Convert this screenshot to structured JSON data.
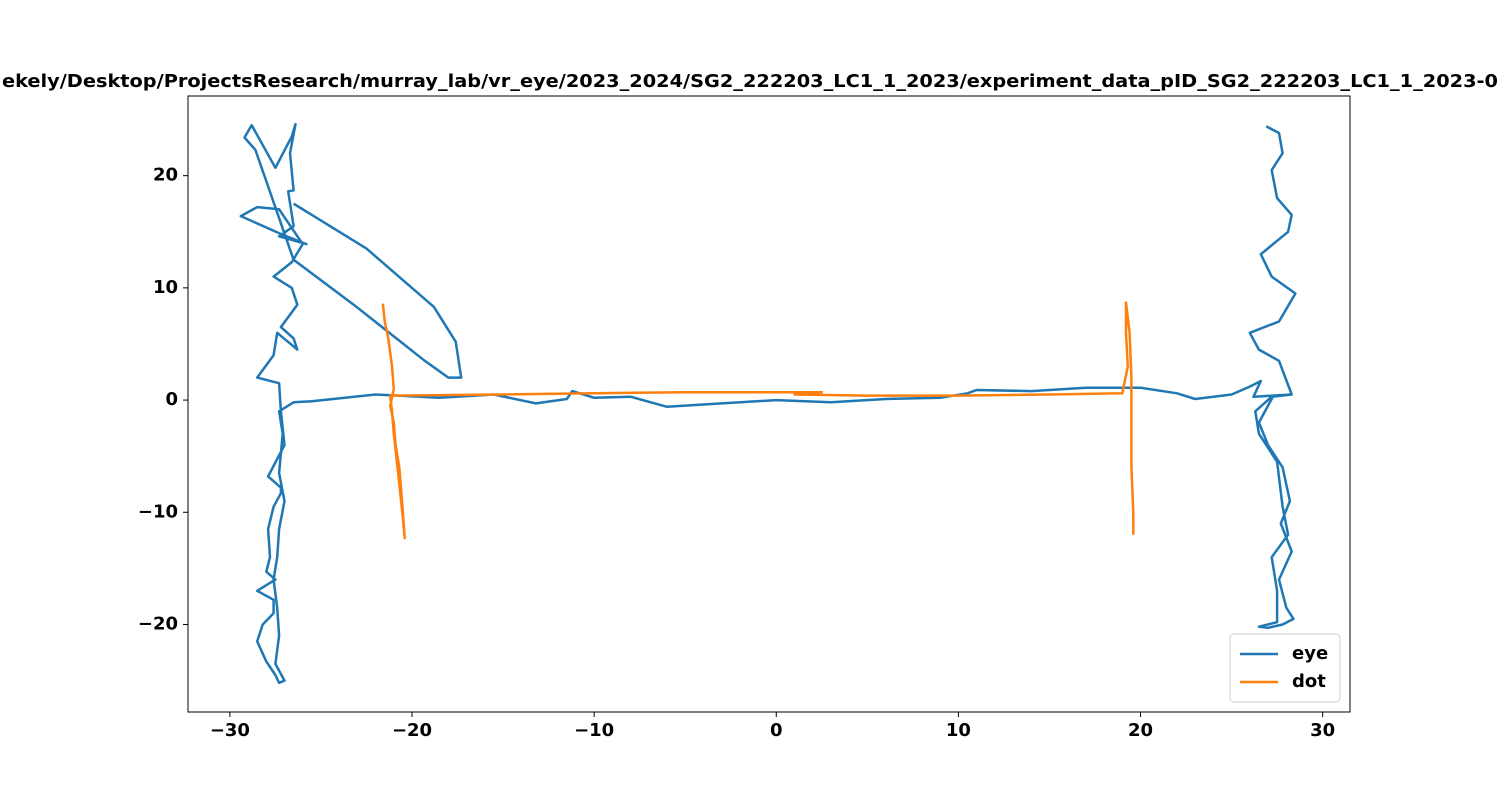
{
  "chart_data": {
    "type": "line",
    "title": "ekely/Desktop/ProjectsResearch/murray_lab/vr_eye/2023_2024/SG2_222203_LC1_1_2023/experiment_data_pID_SG2_222203_LC1_1_2023-0",
    "xlim": [
      -32.3,
      31.5
    ],
    "ylim": [
      -27.8,
      27.1
    ],
    "xticks": [
      {
        "value": -30,
        "label": "−30"
      },
      {
        "value": -20,
        "label": "−20"
      },
      {
        "value": -10,
        "label": "−10"
      },
      0,
      10,
      20,
      30
    ],
    "yticks": [
      {
        "value": -20,
        "label": "−20"
      },
      {
        "value": -10,
        "label": "−10"
      },
      0,
      10,
      20
    ],
    "legend": "lower right",
    "grid": false,
    "series": [
      {
        "name": "eye",
        "color": "#1f77b4",
        "x": [
          -26.5,
          -22.5,
          -18.8,
          -17.6,
          -17.3,
          -18,
          -19.3,
          -23.2,
          -26.5,
          -28.6,
          -29.2,
          -28.8,
          -27.5,
          -26.6,
          -26.4,
          -26.7,
          -26.5,
          -26.8,
          -26.5,
          -27.3,
          -25.8,
          -27.2,
          -29.4,
          -28.5,
          -27.3,
          -26,
          -26.6,
          -27.6,
          -26.6,
          -26.3,
          -27.2,
          -26.5,
          -26.3,
          -27.4,
          -27.6,
          -28.5,
          -27.3,
          -27.2,
          -27,
          -27.9,
          -27.2,
          -27.2,
          -27.6,
          -27.9,
          -27.8,
          -28,
          -27.5,
          -28.5,
          -27.6,
          -27.6,
          -28.2,
          -28.5,
          -28,
          -27.5,
          -27.3,
          -27,
          -27.5,
          -27.3,
          -27.4,
          -27.6,
          -27.4,
          -27.3,
          -27,
          -27.3,
          -27.1,
          -27.3,
          -26.5,
          -25.5,
          -22,
          -18.5,
          -15.5,
          -13.2,
          -11.5,
          -11.2,
          -10,
          -8,
          -6,
          -3,
          0,
          3,
          6,
          9,
          10.5,
          11,
          14,
          17,
          20,
          22,
          23,
          25,
          26,
          26.6,
          26.2,
          28.3,
          27.3,
          26.5,
          27,
          27.8,
          28.2,
          27.7,
          28.3,
          27.6,
          28,
          28.4,
          27.8,
          27,
          26.5,
          27.5,
          27.5,
          27.2,
          28.1,
          27.8,
          27.5,
          26.5,
          26.3,
          27.2,
          28.3,
          27.6,
          26.5,
          26,
          27.6,
          28.5,
          27.2,
          26.6,
          28.1,
          28.3,
          27.5,
          27.2,
          27.8,
          27.6,
          26.9
        ],
        "values": [
          17.5,
          13.5,
          8.3,
          5.2,
          2,
          2,
          3.5,
          8.5,
          12.5,
          22.3,
          23.4,
          24.5,
          20.7,
          23.5,
          24.6,
          22,
          18.7,
          18.6,
          15.5,
          14.6,
          13.9,
          14.8,
          16.4,
          17.2,
          17,
          13.9,
          12.3,
          11,
          10,
          8.5,
          6.5,
          5.5,
          4.5,
          6,
          4,
          2,
          1.5,
          -1,
          -4,
          -6.8,
          -7.8,
          -8.3,
          -9.5,
          -11.5,
          -14,
          -15.3,
          -16,
          -17,
          -17.8,
          -19,
          -20,
          -21.5,
          -23.3,
          -24.5,
          -25.2,
          -25,
          -23.5,
          -21,
          -18.5,
          -16,
          -14,
          -11.5,
          -9,
          -6.5,
          -3,
          -1,
          -0.2,
          -0.1,
          0.5,
          0.2,
          0.5,
          -0.3,
          0.1,
          0.8,
          0.2,
          0.3,
          -0.6,
          -0.3,
          0,
          -0.2,
          0.1,
          0.2,
          0.6,
          0.9,
          0.8,
          1.1,
          1.1,
          0.6,
          0.1,
          0.5,
          1.2,
          1.7,
          0.3,
          0.5,
          0.4,
          -2,
          -4,
          -6,
          -9,
          -11,
          -13.5,
          -16,
          -18.5,
          -19.5,
          -20,
          -20.3,
          -20.2,
          -19.8,
          -17,
          -14,
          -12,
          -9.5,
          -5.5,
          -3,
          -1,
          0.3,
          0.5,
          3.5,
          4.5,
          6,
          7,
          9.5,
          11,
          13,
          15,
          16.5,
          18,
          20.5,
          22,
          23.8,
          24.4
        ]
      },
      {
        "name": "dot",
        "color": "#ff7f0e",
        "x": [
          -21.6,
          -21.5,
          -21.3,
          -21.1,
          -21,
          -21.2,
          -21,
          -20.9,
          -20.7,
          -20.6,
          -20.5,
          -20.4,
          -20.5,
          -20.8,
          -21,
          -21.1,
          -21.2,
          -15,
          -10,
          -5,
          2.5,
          1,
          5,
          10,
          15,
          19,
          19.3,
          19.2,
          19.2,
          19.4,
          19.5,
          19.5,
          19.5,
          19.6,
          19.6
        ],
        "values": [
          8.6,
          7,
          5.5,
          3,
          1,
          -0.5,
          -2,
          -4,
          -6,
          -8,
          -10,
          -12.3,
          -10.5,
          -6,
          -3,
          -1,
          0.4,
          0.5,
          0.6,
          0.7,
          0.7,
          0.5,
          0.4,
          0.4,
          0.5,
          0.6,
          3,
          6,
          8.7,
          6,
          2,
          -2,
          -6,
          -10,
          -12
        ]
      }
    ]
  }
}
